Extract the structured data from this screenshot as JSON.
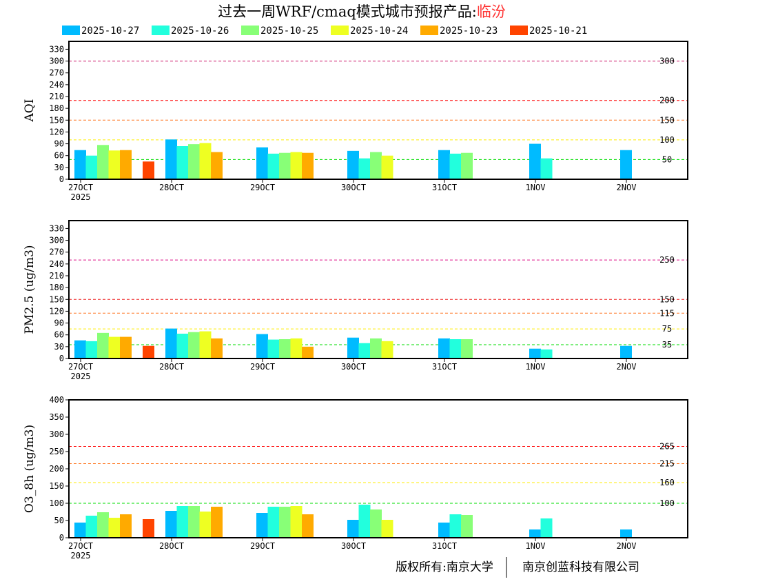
{
  "title": {
    "prefix": "过去一周WRF/cmaq模式城市预报产品:",
    "city": "临汾",
    "city_color": "#FF3333"
  },
  "footer": {
    "left": "版权所有:南京大学",
    "right": "南京创蓝科技有限公司"
  },
  "chart_data": [
    {
      "type": "bar",
      "id": "aqi",
      "ylabel": "AQI",
      "ylim": [
        0,
        350
      ],
      "yticks": [
        0,
        30,
        60,
        90,
        120,
        150,
        180,
        210,
        240,
        270,
        300,
        330
      ],
      "categories": [
        "27OCT",
        "28OCT",
        "29OCT",
        "30OCT",
        "31OCT",
        "1NOV",
        "2NOV"
      ],
      "year_label": "2025",
      "thresholds": [
        {
          "value": 300,
          "label": "300",
          "color": "#CC1166"
        },
        {
          "value": 200,
          "label": "200",
          "color": "#FF0000"
        },
        {
          "value": 150,
          "label": "150",
          "color": "#FF7722"
        },
        {
          "value": 100,
          "label": "100",
          "color": "#FFEE00"
        },
        {
          "value": 50,
          "label": "50",
          "color": "#00DD00"
        }
      ],
      "series": [
        {
          "name": "2025-10-27",
          "color": "#00BBFF",
          "lead_offset": 0,
          "values": [
            74,
            101,
            81,
            72,
            74,
            90,
            74
          ]
        },
        {
          "name": "2025-10-26",
          "color": "#22FFDD",
          "lead_offset": 1,
          "values": [
            60,
            84,
            65,
            53,
            65,
            53,
            null
          ]
        },
        {
          "name": "2025-10-25",
          "color": "#88FF77",
          "lead_offset": 2,
          "values": [
            87,
            89,
            67,
            69,
            67,
            null,
            null
          ]
        },
        {
          "name": "2025-10-24",
          "color": "#EEFF22",
          "lead_offset": 3,
          "values": [
            73,
            92,
            69,
            60,
            null,
            null,
            null
          ]
        },
        {
          "name": "2025-10-23",
          "color": "#FFAA00",
          "lead_offset": 4,
          "values": [
            74,
            69,
            67,
            null,
            null,
            null,
            null
          ]
        },
        {
          "name": "2025-10-21",
          "color": "#FF4400",
          "lead_offset": 6,
          "values": [
            45,
            null,
            null,
            null,
            null,
            null,
            null
          ]
        }
      ]
    },
    {
      "type": "bar",
      "id": "pm25",
      "ylabel": "PM2.5 (ug/m3)",
      "ylim": [
        0,
        350
      ],
      "yticks": [
        0,
        30,
        60,
        90,
        120,
        150,
        180,
        210,
        240,
        270,
        300,
        330
      ],
      "categories": [
        "27OCT",
        "28OCT",
        "29OCT",
        "30OCT",
        "31OCT",
        "1NOV",
        "2NOV"
      ],
      "year_label": "2025",
      "thresholds": [
        {
          "value": 250,
          "label": "250",
          "color": "#DD1188"
        },
        {
          "value": 150,
          "label": "150",
          "color": "#EE2222"
        },
        {
          "value": 115,
          "label": "115",
          "color": "#FF7722"
        },
        {
          "value": 75,
          "label": "75",
          "color": "#FFEE00"
        },
        {
          "value": 35,
          "label": "35",
          "color": "#00DD00"
        }
      ],
      "series": [
        {
          "name": "2025-10-27",
          "color": "#00BBFF",
          "lead_offset": 0,
          "values": [
            46,
            76,
            62,
            53,
            51,
            25,
            32
          ]
        },
        {
          "name": "2025-10-26",
          "color": "#22FFDD",
          "lead_offset": 1,
          "values": [
            44,
            63,
            48,
            39,
            49,
            23,
            null
          ]
        },
        {
          "name": "2025-10-25",
          "color": "#88FF77",
          "lead_offset": 2,
          "values": [
            65,
            67,
            49,
            51,
            49,
            null,
            null
          ]
        },
        {
          "name": "2025-10-24",
          "color": "#EEFF22",
          "lead_offset": 3,
          "values": [
            55,
            69,
            51,
            44,
            null,
            null,
            null
          ]
        },
        {
          "name": "2025-10-23",
          "color": "#FFAA00",
          "lead_offset": 4,
          "values": [
            55,
            51,
            30,
            null,
            null,
            null,
            null
          ]
        },
        {
          "name": "2025-10-21",
          "color": "#FF4400",
          "lead_offset": 6,
          "values": [
            32,
            null,
            null,
            null,
            null,
            null,
            null
          ]
        }
      ]
    },
    {
      "type": "bar",
      "id": "o3",
      "ylabel": "O3_8h (ug/m3)",
      "ylim": [
        0,
        400
      ],
      "yticks": [
        0,
        50,
        100,
        150,
        200,
        250,
        300,
        350,
        400
      ],
      "categories": [
        "27OCT",
        "28OCT",
        "29OCT",
        "30OCT",
        "31OCT",
        "1NOV",
        "2NOV"
      ],
      "year_label": "2025",
      "thresholds": [
        {
          "value": 265,
          "label": "265",
          "color": "#FF0000"
        },
        {
          "value": 215,
          "label": "215",
          "color": "#FF7722"
        },
        {
          "value": 160,
          "label": "160",
          "color": "#FFEE00"
        },
        {
          "value": 100,
          "label": "100",
          "color": "#00DD00"
        }
      ],
      "series": [
        {
          "name": "2025-10-27",
          "color": "#00BBFF",
          "lead_offset": 0,
          "values": [
            44,
            78,
            72,
            52,
            44,
            24,
            24
          ]
        },
        {
          "name": "2025-10-26",
          "color": "#22FFDD",
          "lead_offset": 1,
          "values": [
            64,
            92,
            90,
            96,
            68,
            56,
            null
          ]
        },
        {
          "name": "2025-10-25",
          "color": "#88FF77",
          "lead_offset": 2,
          "values": [
            74,
            92,
            90,
            82,
            66,
            null,
            null
          ]
        },
        {
          "name": "2025-10-24",
          "color": "#EEFF22",
          "lead_offset": 3,
          "values": [
            58,
            76,
            92,
            52,
            null,
            null,
            null
          ]
        },
        {
          "name": "2025-10-23",
          "color": "#FFAA00",
          "lead_offset": 4,
          "values": [
            68,
            90,
            68,
            null,
            null,
            null,
            null
          ]
        },
        {
          "name": "2025-10-21",
          "color": "#FF4400",
          "lead_offset": 6,
          "values": [
            54,
            null,
            null,
            null,
            null,
            null,
            null
          ]
        }
      ]
    }
  ]
}
